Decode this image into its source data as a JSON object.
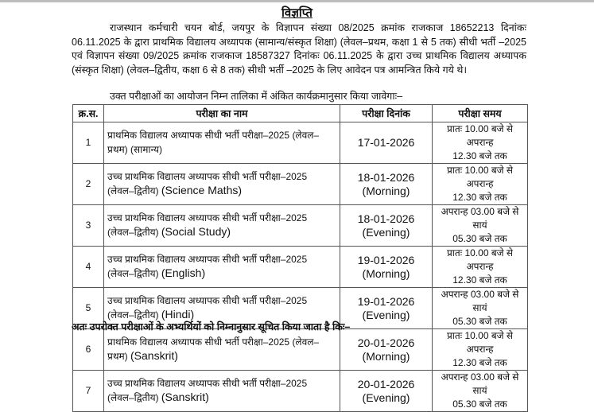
{
  "title": "विज्ञप्ति",
  "intro_paragraph": "राजस्थान कर्मचारी चयन बोर्ड, जयपुर के विज्ञापन संख्या 08/2025 क्रमांक राजकाज 18652213 दिनांकः 06.11.2025 के द्वारा प्राथमिक विद्यालय अध्यापक (सामान्य/संस्कृत शिक्षा) (लेवल–प्रथम, कक्षा 1 से 5 तक) सीधी भर्ती –2025 एवं विज्ञापन संख्या 09/2025 क्रमांक राजकाज 18587327 दिनांकः 06.11.2025 के द्वारा उच्च प्राथमिक विद्यालय अध्यापक (संस्कृत शिक्षा) (लेवल–द्वितीय, कक्षा 6 से 8 तक) सीधी भर्ती –2025 के लिए आवेदन पत्र आमन्त्रित किये गये थे।",
  "schedule_intro": "उक्त परीक्षाओं का आयोजन निम्न तालिका में अंकित कार्यक्रमानुसार किया जावेगाः–",
  "table": {
    "headers": [
      "क्र.स.",
      "परीक्षा का नाम",
      "परीक्षा दिनांक",
      "परीक्षा समय"
    ],
    "rows": [
      {
        "sn": "1",
        "name_hi": "प्राथमिक विद्यालय अध्यापक सीधी भर्ती परीक्षा–2025 (लेवल–प्रथम) (सामान्य)",
        "subject": "",
        "date": "17-01-2026",
        "shift": "",
        "time1": "प्रातः 10.00 बजे से अपरान्ह",
        "time2": "12.30 बजे तक"
      },
      {
        "sn": "2",
        "name_hi": "उच्च प्राथमिक विद्यालय अध्यापक सीधी भर्ती परीक्षा–2025 (लेवल–द्वितीय)",
        "subject": "(Science Maths)",
        "date": "18-01-2026",
        "shift": "(Morning)",
        "time1": "प्रातः 10.00 बजे से अपरान्ह",
        "time2": "12.30 बजे तक"
      },
      {
        "sn": "3",
        "name_hi": "उच्च प्राथमिक विद्यालय अध्यापक सीधी भर्ती परीक्षा–2025 (लेवल–द्वितीय)",
        "subject": "(Social Study)",
        "date": "18-01-2026",
        "shift": "(Evening)",
        "time1": "अपरान्ह 03.00 बजे से सायं",
        "time2": "05.30 बजे तक"
      },
      {
        "sn": "4",
        "name_hi": "उच्च प्राथमिक विद्यालय अध्यापक सीधी भर्ती परीक्षा–2025 (लेवल–द्वितीय)",
        "subject": "(English)",
        "date": "19-01-2026",
        "shift": "(Morning)",
        "time1": "प्रातः 10.00 बजे से अपरान्ह",
        "time2": "12.30 बजे तक"
      },
      {
        "sn": "5",
        "name_hi": "उच्च प्राथमिक विद्यालय अध्यापक सीधी भर्ती परीक्षा–2025 (लेवल–द्वितीय)",
        "subject": "(Hindi)",
        "date": "19-01-2026",
        "shift": "(Evening)",
        "time1": "अपरान्ह 03.00 बजे से सायं",
        "time2": "05.30 बजे तक"
      },
      {
        "sn": "6",
        "name_hi": "प्राथमिक विद्यालय अध्यापक सीधी भर्ती परीक्षा–2025 (लेवल–प्रथम)",
        "subject": "(Sanskrit)",
        "date": "20-01-2026",
        "shift": "(Morning)",
        "time1": "प्रातः 10.00 बजे से अपरान्ह",
        "time2": "12.30 बजे तक"
      },
      {
        "sn": "7",
        "name_hi": "उच्च प्राथमिक विद्यालय अध्यापक सीधी भर्ती परीक्षा–2025 (लेवल–द्वितीय)",
        "subject": "(Sanskrit)",
        "date": "20-01-2026",
        "shift": "(Evening)",
        "time1": "अपरान्ह 03.00 बजे से सायं",
        "time2": "05.30 बजे तक"
      }
    ]
  },
  "footer_text": "अतः उपरोक्त परीक्षाओं के अभ्यर्थियों को निम्नानुसार सूचित किया जाता है किः–"
}
